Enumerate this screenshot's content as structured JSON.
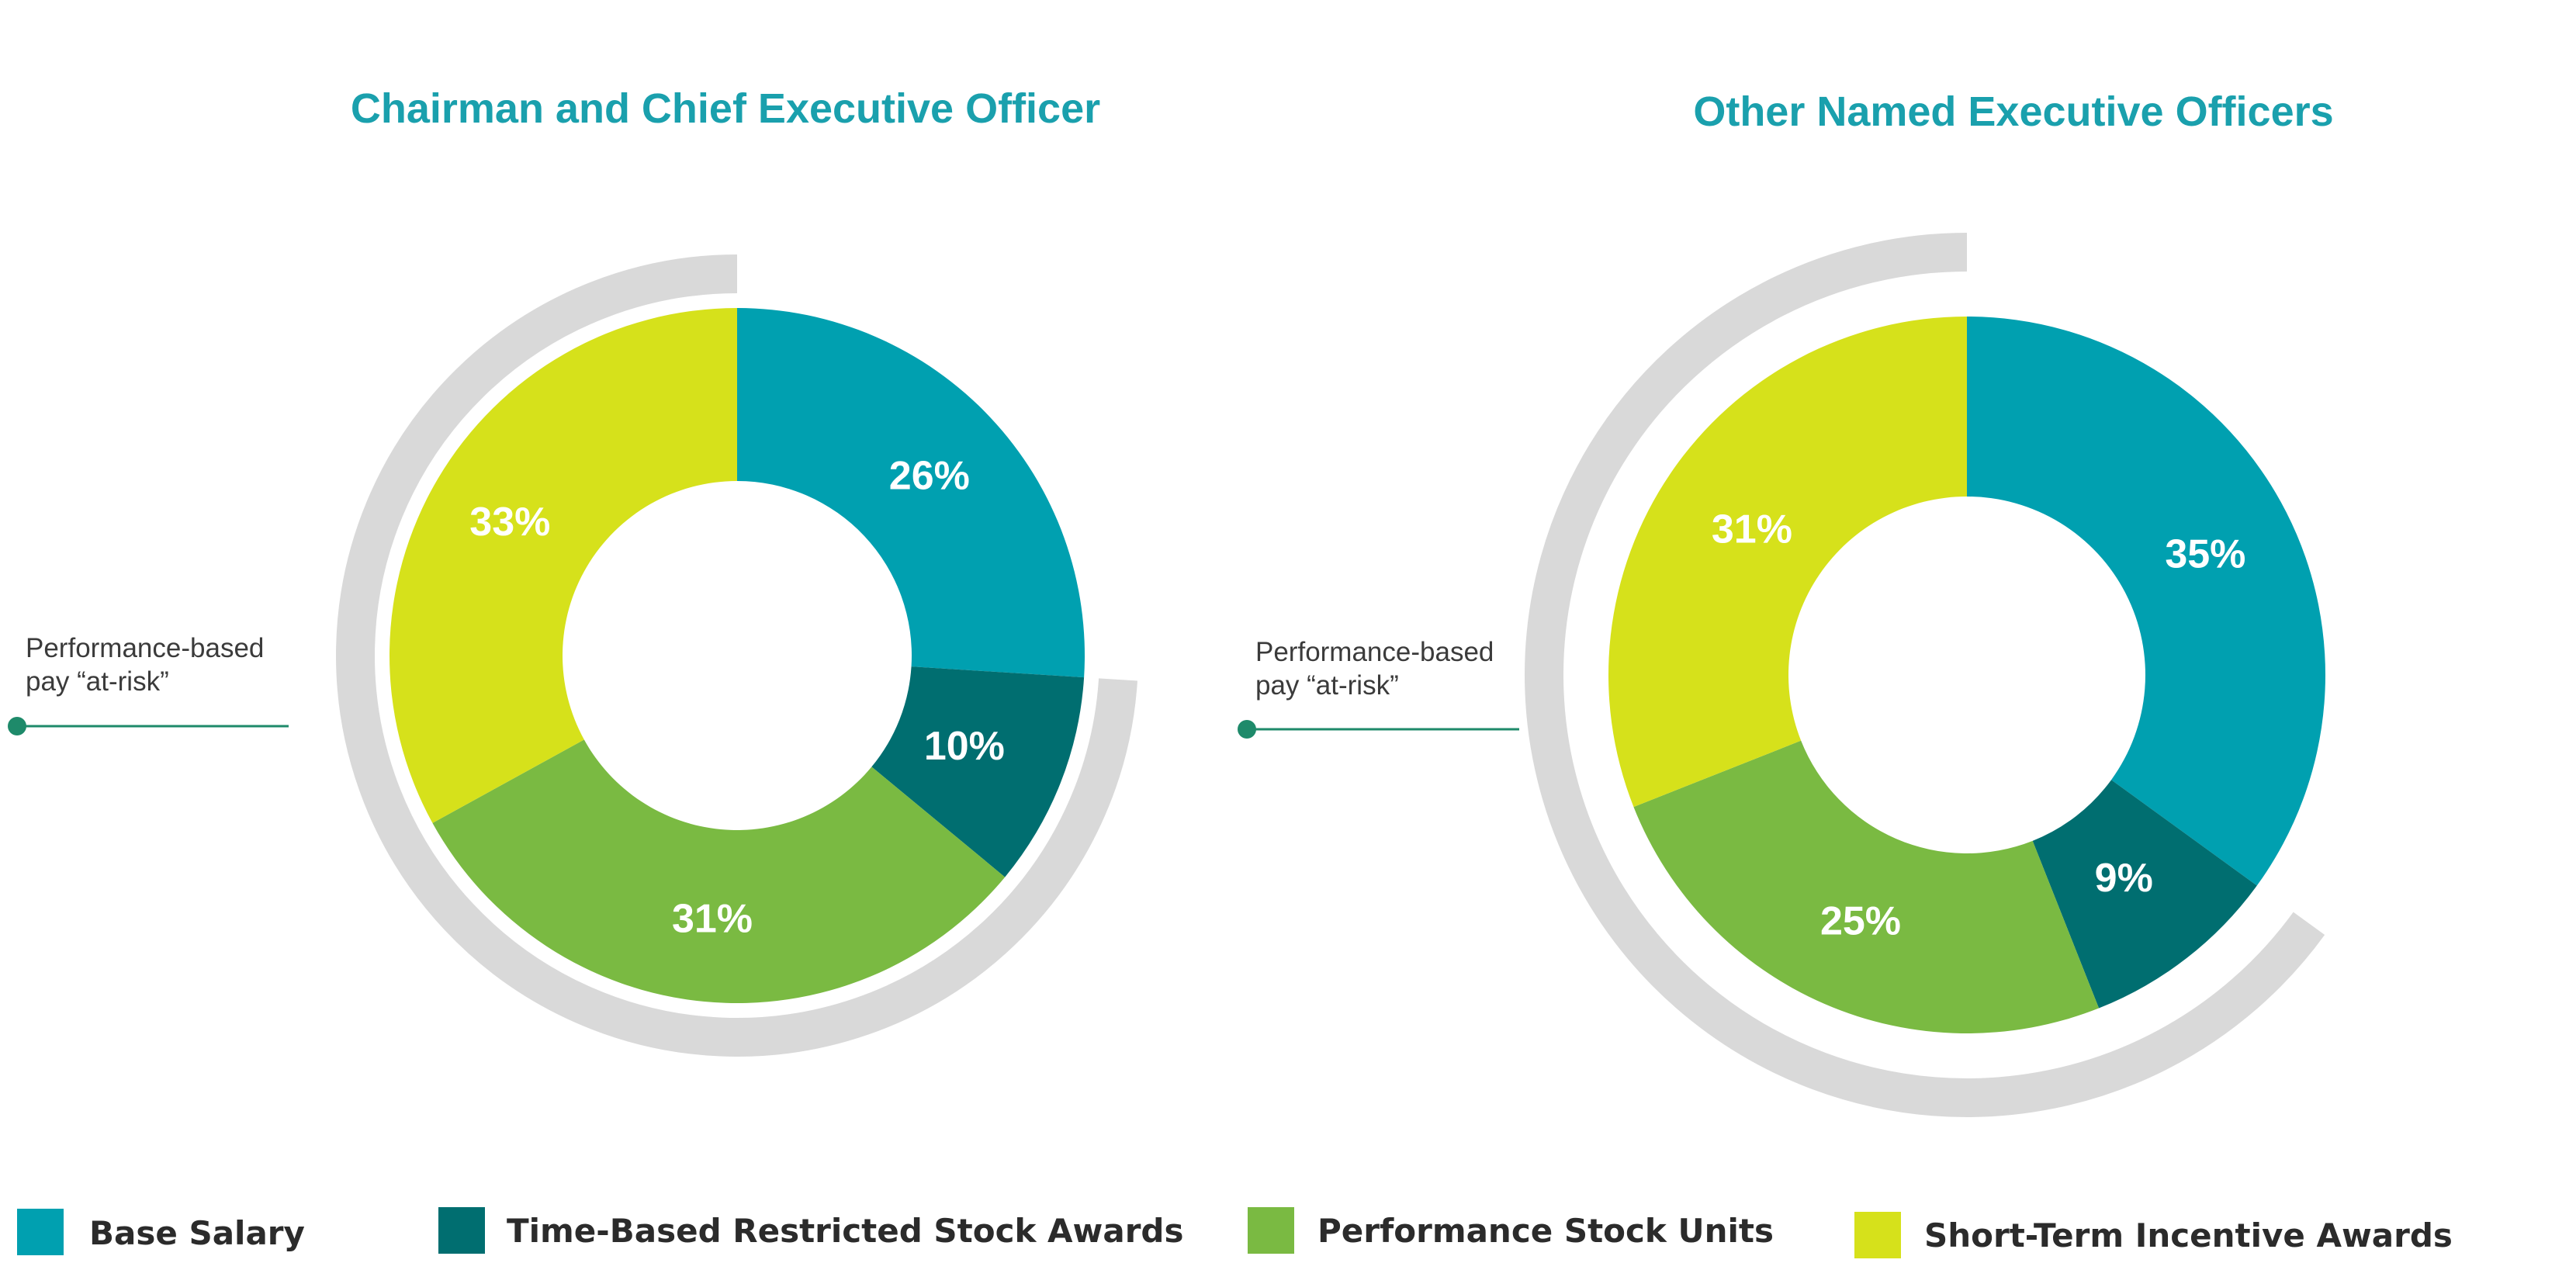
{
  "chart_data": [
    {
      "type": "pie",
      "variant": "donut",
      "title": "Chairman and Chief Executive Officer",
      "categories": [
        "Base Salary",
        "Time-Based Restricted Stock Awards",
        "Performance Stock Units",
        "Short-Term Incentive Awards"
      ],
      "values": [
        26,
        10,
        31,
        33
      ],
      "labels": [
        "26%",
        "10%",
        "31%",
        "33%"
      ],
      "callout": {
        "line1": "Performance-based",
        "line2": "pay “at-risk”",
        "bracket_covers": [
          "Time-Based Restricted Stock Awards",
          "Performance Stock Units",
          "Short-Term Incentive Awards"
        ]
      }
    },
    {
      "type": "pie",
      "variant": "donut",
      "title": "Other Named Executive Officers",
      "categories": [
        "Base Salary",
        "Time-Based Restricted Stock Awards",
        "Performance Stock Units",
        "Short-Term Incentive Awards"
      ],
      "values": [
        35,
        9,
        25,
        31
      ],
      "labels": [
        "35%",
        "9%",
        "25%",
        "31%"
      ],
      "callout": {
        "line1": "Performance-based",
        "line2": "pay “at-risk”",
        "bracket_covers": [
          "Time-Based Restricted Stock Awards",
          "Performance Stock Units",
          "Short-Term Incentive Awards"
        ]
      }
    }
  ],
  "legend": [
    {
      "label": "Base Salary",
      "color": "#00a0b0"
    },
    {
      "label": "Time-Based Restricted Stock Awards",
      "color": "#006e70"
    },
    {
      "label": "Performance Stock Units",
      "color": "#7aba42"
    },
    {
      "label": "Short-Term Incentive Awards",
      "color": "#d6e11b"
    }
  ],
  "colors": {
    "title": "#1aa0ad",
    "bracket": "#d9d9d9",
    "callout_line": "#1e8a6a",
    "label_text": "#ffffff"
  }
}
